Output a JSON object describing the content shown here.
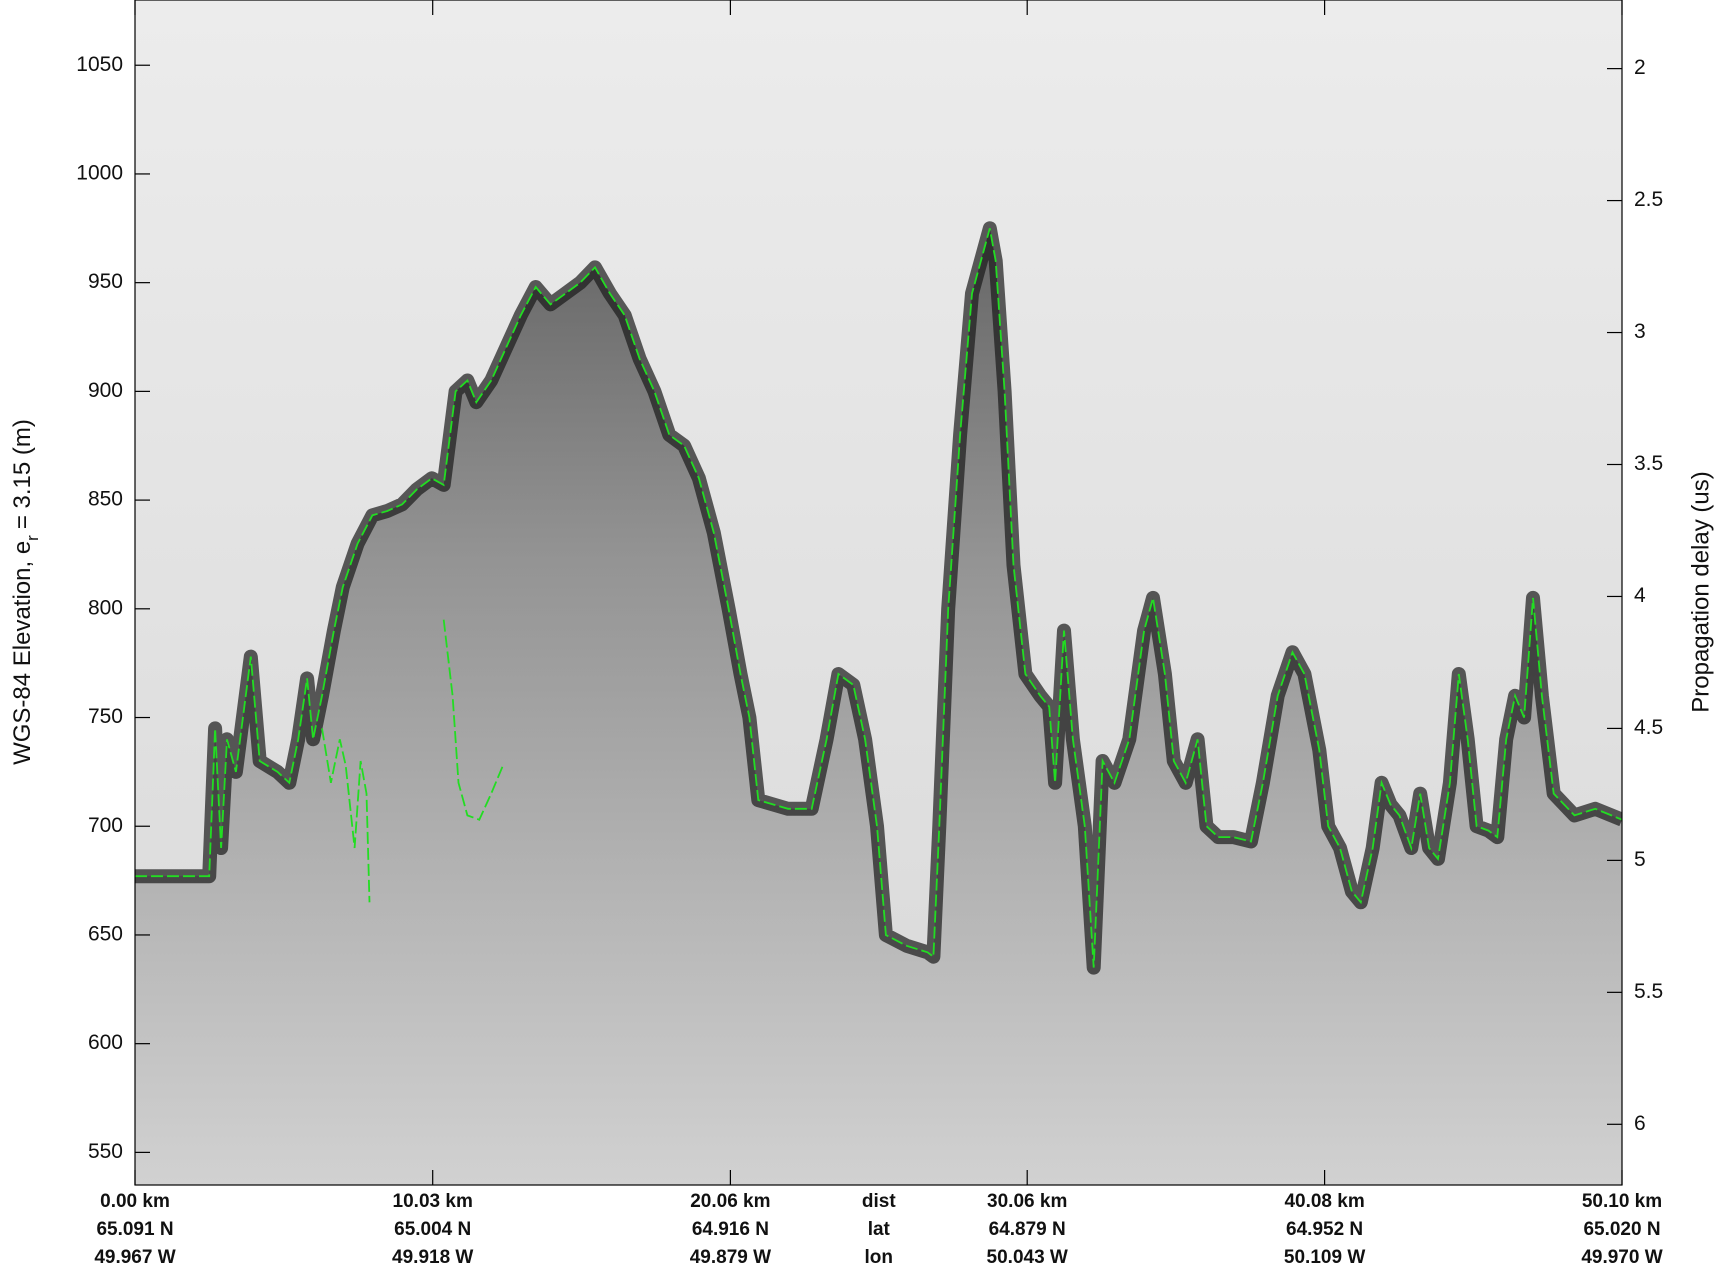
{
  "chart_data": {
    "type": "line",
    "ylabel": "WGS-84 Elevation, e",
    "ylabel_sub": "r",
    "ylabel_rest": "= 3.15 (m)",
    "y2label": "Propagation delay (us)",
    "xlim": [
      0,
      50.1
    ],
    "ylim": [
      535,
      1080
    ],
    "y2lim": [
      6.23,
      1.74
    ],
    "yticks": [
      550,
      600,
      650,
      700,
      750,
      800,
      850,
      900,
      950,
      1000,
      1050
    ],
    "y2ticks": [
      2,
      2.5,
      3,
      3.5,
      4,
      4.5,
      5,
      5.5,
      6
    ],
    "xticks": [
      {
        "value": 0,
        "label": "0.00 km"
      },
      {
        "value": 10.03,
        "label": "10.03 km"
      },
      {
        "value": 20.06,
        "label": "20.06 km"
      },
      {
        "value": 30.06,
        "label": "30.06 km"
      },
      {
        "value": 40.08,
        "label": "40.08 km"
      },
      {
        "value": 50.1,
        "label": "50.10 km"
      }
    ],
    "xtick_lat": [
      "65.091 N",
      "65.004 N",
      "64.916 N",
      "64.879 N",
      "64.952 N",
      "65.020 N"
    ],
    "xtick_lon": [
      "49.967 W",
      "49.918 W",
      "49.879 W",
      "50.043 W",
      "50.109 W",
      "49.970 W"
    ],
    "row_labels": [
      "dist",
      "lat",
      "lon"
    ],
    "series": [
      {
        "color": "#22dd22",
        "x": [
          0,
          2.5,
          2.7,
          2.9,
          3.1,
          3.4,
          3.9,
          4.2,
          4.8,
          5.2,
          5.5,
          5.8,
          6.0,
          6.3,
          6.7,
          7.0,
          7.5,
          8.0,
          8.5,
          9.0,
          9.5,
          10.0,
          10.4,
          10.8,
          11.2,
          11.5,
          12.0,
          12.5,
          13.0,
          13.5,
          14.0,
          14.5,
          15.0,
          15.5,
          16.0,
          16.5,
          17.0,
          17.5,
          18.0,
          18.5,
          19.0,
          19.5,
          20.0,
          20.4,
          20.7,
          21.0,
          22.0,
          22.8,
          23.3,
          23.7,
          24.2,
          24.6,
          25.0,
          25.3,
          26.0,
          26.7,
          26.9,
          27.1,
          27.4,
          27.8,
          28.2,
          28.5,
          28.8,
          29.0,
          29.3,
          29.6,
          30.0,
          30.5,
          30.8,
          31.0,
          31.3,
          31.6,
          32.0,
          32.3,
          32.6,
          33.0,
          33.5,
          34.0,
          34.3,
          34.7,
          35.0,
          35.4,
          35.8,
          36.1,
          36.5,
          37.0,
          37.6,
          38.0,
          38.5,
          39.0,
          39.4,
          39.9,
          40.2,
          40.6,
          41.0,
          41.3,
          41.7,
          42.0,
          42.3,
          42.6,
          43.0,
          43.3,
          43.6,
          43.9,
          44.3,
          44.6,
          44.9,
          45.2,
          45.6,
          45.9,
          46.2,
          46.5,
          46.8,
          47.1,
          47.4,
          47.8,
          48.5,
          49.2,
          50.1
        ],
        "values": [
          677,
          677,
          745,
          690,
          740,
          725,
          778,
          730,
          725,
          720,
          740,
          768,
          740,
          760,
          790,
          810,
          830,
          843,
          845,
          848,
          855,
          860,
          857,
          900,
          905,
          895,
          905,
          920,
          935,
          948,
          940,
          945,
          950,
          957,
          945,
          935,
          915,
          900,
          880,
          875,
          860,
          835,
          800,
          770,
          750,
          712,
          708,
          708,
          740,
          770,
          765,
          740,
          700,
          650,
          645,
          642,
          640,
          700,
          800,
          880,
          945,
          960,
          975,
          960,
          900,
          820,
          770,
          760,
          755,
          720,
          790,
          740,
          700,
          635,
          730,
          720,
          740,
          790,
          805,
          770,
          730,
          720,
          740,
          700,
          695,
          695,
          693,
          720,
          760,
          780,
          770,
          735,
          700,
          690,
          670,
          665,
          690,
          720,
          710,
          705,
          690,
          715,
          690,
          685,
          720,
          770,
          740,
          700,
          698,
          695,
          740,
          760,
          750,
          805,
          760,
          715,
          705,
          708,
          703
        ]
      },
      {
        "color": "#22dd22",
        "x": [
          6.3,
          6.6,
          6.9,
          7.1,
          7.4,
          7.6,
          7.8,
          7.9
        ],
        "values": [
          745,
          720,
          740,
          728,
          690,
          730,
          715,
          665
        ]
      },
      {
        "color": "#22dd22",
        "x": [
          10.4,
          10.7,
          10.9,
          11.2,
          11.6,
          12.0,
          12.4
        ],
        "values": [
          795,
          760,
          720,
          705,
          703,
          715,
          728
        ]
      }
    ]
  }
}
